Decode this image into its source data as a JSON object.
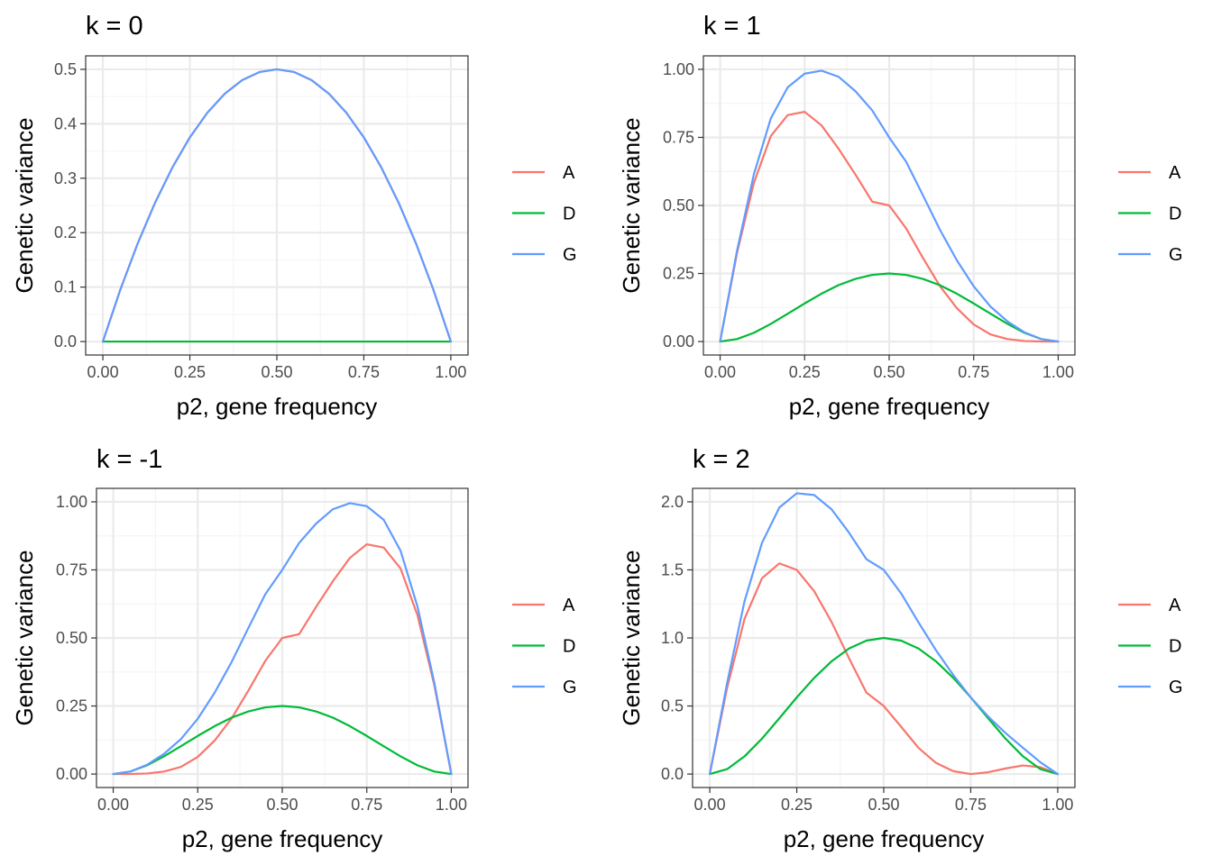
{
  "colors": {
    "A": "#F8766D",
    "D": "#00BA38",
    "G": "#619CFF",
    "grid_major": "#ebebeb",
    "grid_minor": "#f5f5f5",
    "panel_border": "#333333",
    "tick_text": "#4d4d4d",
    "text": "#000000"
  },
  "legend": {
    "labels": [
      "A",
      "D",
      "G"
    ],
    "placement": "right"
  },
  "chart_data": [
    {
      "type": "line",
      "title": "k = 0",
      "xlabel": "p2, gene frequency",
      "ylabel": "Genetic variance",
      "xlim": [
        0,
        1
      ],
      "ylim": [
        0,
        0.5
      ],
      "xticks": [
        0,
        0.25,
        0.5,
        0.75,
        1
      ],
      "xtick_labels": [
        "0.00",
        "0.25",
        "0.50",
        "0.75",
        "1.00"
      ],
      "yticks": [
        0,
        0.1,
        0.2,
        0.3,
        0.4,
        0.5
      ],
      "ytick_labels": [
        "0.0",
        "0.1",
        "0.2",
        "0.3",
        "0.4",
        "0.5"
      ],
      "grid": true,
      "x": [
        0,
        0.05,
        0.1,
        0.15,
        0.2,
        0.25,
        0.3,
        0.35,
        0.4,
        0.45,
        0.5,
        0.55,
        0.6,
        0.65,
        0.7,
        0.75,
        0.8,
        0.85,
        0.9,
        0.95,
        1
      ],
      "series": [
        {
          "name": "A",
          "values": [
            0,
            0.095,
            0.18,
            0.255,
            0.32,
            0.375,
            0.42,
            0.455,
            0.48,
            0.495,
            0.5,
            0.495,
            0.48,
            0.455,
            0.42,
            0.375,
            0.32,
            0.255,
            0.18,
            0.095,
            0
          ]
        },
        {
          "name": "D",
          "values": [
            0,
            0,
            0,
            0,
            0,
            0,
            0,
            0,
            0,
            0,
            0,
            0,
            0,
            0,
            0,
            0,
            0,
            0,
            0,
            0,
            0
          ]
        },
        {
          "name": "G",
          "values": [
            0,
            0.095,
            0.18,
            0.255,
            0.32,
            0.375,
            0.42,
            0.455,
            0.48,
            0.495,
            0.5,
            0.495,
            0.48,
            0.455,
            0.42,
            0.375,
            0.32,
            0.255,
            0.18,
            0.095,
            0
          ]
        }
      ]
    },
    {
      "type": "line",
      "title": "k = 1",
      "xlabel": "p2, gene frequency",
      "ylabel": "Genetic variance",
      "xlim": [
        0,
        1
      ],
      "ylim": [
        0,
        1
      ],
      "xticks": [
        0,
        0.25,
        0.5,
        0.75,
        1
      ],
      "xtick_labels": [
        "0.00",
        "0.25",
        "0.50",
        "0.75",
        "1.00"
      ],
      "yticks": [
        0,
        0.25,
        0.5,
        0.75,
        1
      ],
      "ytick_labels": [
        "0.00",
        "0.25",
        "0.50",
        "0.75",
        "1.00"
      ],
      "grid": true,
      "x": [
        0,
        0.05,
        0.1,
        0.15,
        0.2,
        0.25,
        0.3,
        0.35,
        0.4,
        0.45,
        0.5,
        0.55,
        0.6,
        0.65,
        0.7,
        0.75,
        0.8,
        0.85,
        0.9,
        0.95,
        1
      ],
      "series": [
        {
          "name": "A",
          "values": [
            0,
            0.325,
            0.583,
            0.755,
            0.832,
            0.844,
            0.794,
            0.709,
            0.614,
            0.514,
            0.5,
            0.416,
            0.307,
            0.204,
            0.123,
            0.063,
            0.026,
            0.009,
            0.002,
            0.0003,
            0
          ]
        },
        {
          "name": "D",
          "values": [
            0,
            0.009,
            0.032,
            0.065,
            0.102,
            0.14,
            0.176,
            0.207,
            0.23,
            0.245,
            0.25,
            0.245,
            0.23,
            0.207,
            0.176,
            0.14,
            0.102,
            0.065,
            0.032,
            0.009,
            0
          ]
        },
        {
          "name": "G",
          "values": [
            0,
            0.334,
            0.615,
            0.82,
            0.934,
            0.984,
            0.995,
            0.973,
            0.92,
            0.849,
            0.75,
            0.661,
            0.537,
            0.411,
            0.299,
            0.203,
            0.128,
            0.074,
            0.034,
            0.009,
            0
          ]
        }
      ]
    },
    {
      "type": "line",
      "title": "k = -1",
      "xlabel": "p2, gene frequency",
      "ylabel": "Genetic variance",
      "xlim": [
        0,
        1
      ],
      "ylim": [
        0,
        1
      ],
      "xticks": [
        0,
        0.25,
        0.5,
        0.75,
        1
      ],
      "xtick_labels": [
        "0.00",
        "0.25",
        "0.50",
        "0.75",
        "1.00"
      ],
      "yticks": [
        0,
        0.25,
        0.5,
        0.75,
        1
      ],
      "ytick_labels": [
        "0.00",
        "0.25",
        "0.50",
        "0.75",
        "1.00"
      ],
      "grid": true,
      "x": [
        0,
        0.05,
        0.1,
        0.15,
        0.2,
        0.25,
        0.3,
        0.35,
        0.4,
        0.45,
        0.5,
        0.55,
        0.6,
        0.65,
        0.7,
        0.75,
        0.8,
        0.85,
        0.9,
        0.95,
        1
      ],
      "series": [
        {
          "name": "A",
          "values": [
            0,
            0.0003,
            0.002,
            0.009,
            0.026,
            0.063,
            0.123,
            0.204,
            0.307,
            0.416,
            0.5,
            0.514,
            0.614,
            0.709,
            0.794,
            0.844,
            0.832,
            0.755,
            0.583,
            0.325,
            0
          ]
        },
        {
          "name": "D",
          "values": [
            0,
            0.009,
            0.032,
            0.065,
            0.102,
            0.14,
            0.176,
            0.207,
            0.23,
            0.245,
            0.25,
            0.245,
            0.23,
            0.207,
            0.176,
            0.14,
            0.102,
            0.065,
            0.032,
            0.009,
            0
          ]
        },
        {
          "name": "G",
          "values": [
            0,
            0.009,
            0.034,
            0.074,
            0.128,
            0.203,
            0.299,
            0.411,
            0.537,
            0.661,
            0.75,
            0.849,
            0.92,
            0.973,
            0.995,
            0.984,
            0.934,
            0.82,
            0.615,
            0.334,
            0
          ]
        }
      ]
    },
    {
      "type": "line",
      "title": "k = 2",
      "xlabel": "p2, gene frequency",
      "ylabel": "Genetic variance",
      "xlim": [
        0,
        1
      ],
      "ylim": [
        0,
        2
      ],
      "xticks": [
        0,
        0.25,
        0.5,
        0.75,
        1
      ],
      "xtick_labels": [
        "0.00",
        "0.25",
        "0.50",
        "0.75",
        "1.00"
      ],
      "yticks": [
        0,
        0.5,
        1,
        1.5,
        2
      ],
      "ytick_labels": [
        "0.0",
        "0.5",
        "1.0",
        "1.5",
        "2.0"
      ],
      "grid": true,
      "x": [
        0,
        0.05,
        0.1,
        0.15,
        0.2,
        0.25,
        0.3,
        0.35,
        0.4,
        0.45,
        0.5,
        0.55,
        0.6,
        0.65,
        0.7,
        0.75,
        0.8,
        0.85,
        0.9,
        0.95,
        1
      ],
      "series": [
        {
          "name": "A",
          "values": [
            0,
            0.635,
            1.141,
            1.438,
            1.548,
            1.5,
            1.344,
            1.117,
            0.852,
            0.599,
            0.5,
            0.347,
            0.192,
            0.082,
            0.021,
            0,
            0.013,
            0.041,
            0.063,
            0.051,
            0
          ]
        },
        {
          "name": "D",
          "values": [
            0,
            0.036,
            0.13,
            0.26,
            0.41,
            0.563,
            0.706,
            0.828,
            0.922,
            0.98,
            1,
            0.98,
            0.922,
            0.828,
            0.706,
            0.563,
            0.41,
            0.26,
            0.13,
            0.036,
            0
          ]
        },
        {
          "name": "G",
          "values": [
            0,
            0.671,
            1.271,
            1.698,
            1.958,
            2.063,
            2.05,
            1.945,
            1.774,
            1.579,
            1.5,
            1.327,
            1.114,
            0.91,
            0.727,
            0.563,
            0.423,
            0.301,
            0.193,
            0.087,
            0
          ]
        }
      ]
    }
  ]
}
